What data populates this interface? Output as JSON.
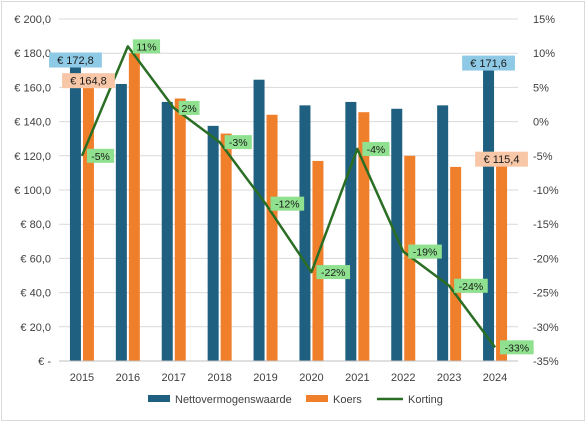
{
  "chart_data": {
    "type": "bar",
    "categories": [
      "2015",
      "2016",
      "2017",
      "2018",
      "2019",
      "2020",
      "2021",
      "2022",
      "2023",
      "2024"
    ],
    "series": [
      {
        "name": "Nettovermogenswaarde",
        "type": "bar",
        "axis": "left",
        "color": "#1f5f80",
        "values": [
          172.8,
          162.0,
          151.5,
          137.5,
          164.5,
          149.5,
          151.5,
          147.5,
          149.5,
          171.6
        ]
      },
      {
        "name": "Koers",
        "type": "bar",
        "axis": "left",
        "color": "#f07f2b",
        "values": [
          164.8,
          180.0,
          153.5,
          133.0,
          144.0,
          117.0,
          145.5,
          120.0,
          113.5,
          115.4
        ]
      },
      {
        "name": "Korting",
        "type": "line",
        "axis": "right",
        "color": "#2a6e24",
        "values": [
          -5,
          11,
          2,
          -3,
          -12,
          -22,
          -4,
          -19,
          -24,
          -33
        ]
      }
    ],
    "left_axis": {
      "min": 0,
      "max": 200,
      "step": 20,
      "tick_labels": [
        "€ -",
        "€ 20,0",
        "€ 40,0",
        "€ 60,0",
        "€ 80,0",
        "€ 100,0",
        "€ 120,0",
        "€ 140,0",
        "€ 160,0",
        "€ 180,0",
        "€ 200,0"
      ]
    },
    "right_axis": {
      "min": -35,
      "max": 15,
      "step": 5,
      "tick_labels": [
        "-35%",
        "-30%",
        "-25%",
        "-20%",
        "-15%",
        "-10%",
        "-5%",
        "0%",
        "5%",
        "10%",
        "15%"
      ]
    },
    "bar_labels": [
      {
        "series": 0,
        "index": 0,
        "text": "€ 172,8",
        "bg": "#8ecae6"
      },
      {
        "series": 1,
        "index": 0,
        "text": "€ 164,8",
        "bg": "#f7c7a7"
      },
      {
        "series": 0,
        "index": 9,
        "text": "€ 171,6",
        "bg": "#8ecae6"
      },
      {
        "series": 1,
        "index": 9,
        "text": "€ 115,4",
        "bg": "#f7c7a7"
      }
    ],
    "line_labels": [
      "-5%",
      "11%",
      "2%",
      "-3%",
      "-12%",
      "-22%",
      "-4%",
      "-19%",
      "-24%",
      "-33%"
    ],
    "line_label_bg": "#8fe08f",
    "grid": "horizontal",
    "legend_position": "bottom"
  }
}
